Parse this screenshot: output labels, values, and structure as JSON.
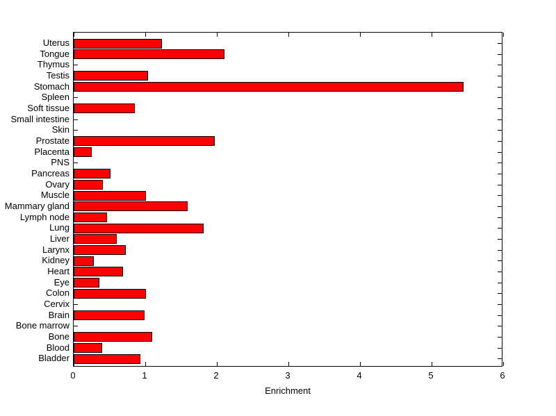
{
  "figure": {
    "background": "#ffffff",
    "bar_fill": "#ff0000",
    "bar_edge": "#000000",
    "axis_color": "#000000",
    "text_color": "#000000"
  },
  "chart_data": {
    "type": "bar",
    "orientation": "horizontal",
    "title": "",
    "xlabel": "Enrichment",
    "ylabel": "",
    "xlim": [
      0,
      6
    ],
    "x_ticks": [
      0,
      1,
      2,
      3,
      4,
      5,
      6
    ],
    "grid": false,
    "legend": null,
    "categories": [
      "Uterus",
      "Tongue",
      "Thymus",
      "Testis",
      "Stomach",
      "Spleen",
      "Soft tissue",
      "Small intestine",
      "Skin",
      "Prostate",
      "Placenta",
      "PNS",
      "Pancreas",
      "Ovary",
      "Muscle",
      "Mammary gland",
      "Lymph node",
      "Lung",
      "Liver",
      "Larynx",
      "Kidney",
      "Heart",
      "Eye",
      "Colon",
      "Cervix",
      "Brain",
      "Bone marrow",
      "Bone",
      "Blood",
      "Bladder"
    ],
    "values": [
      1.23,
      2.11,
      0,
      1.04,
      5.45,
      0,
      0.85,
      0,
      0,
      1.97,
      0.25,
      0,
      0.51,
      0.41,
      1.01,
      1.59,
      0.47,
      1.82,
      0.6,
      0.73,
      0.28,
      0.69,
      0.36,
      1.01,
      0,
      0.99,
      0,
      1.1,
      0.4,
      0.93
    ]
  }
}
